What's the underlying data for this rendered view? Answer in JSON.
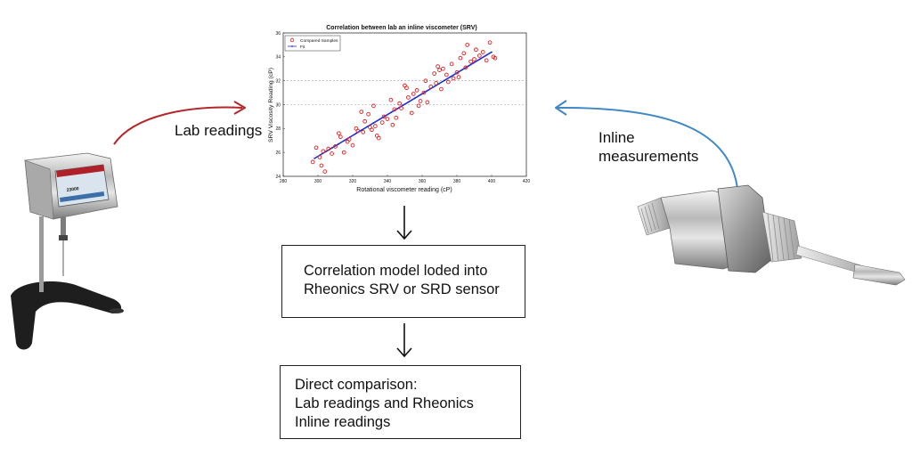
{
  "labels": {
    "lab_readings": "Lab readings",
    "inline_line1": "Inline",
    "inline_line2": "measurements"
  },
  "boxes": {
    "model_line1": "Correlation model loded into",
    "model_line2": "Rheonics SRV or SRD sensor",
    "compare_line1": "Direct comparison:",
    "compare_line2": "Lab readings and Rheonics",
    "compare_line3": "Inline readings"
  },
  "devices": {
    "viscometer_screen_value": "23000"
  },
  "colors": {
    "lab_arrow": "#b3262a",
    "inline_arrow": "#3f88c5",
    "samples": "#e02020",
    "fit": "#1f2fd1"
  },
  "chart_data": {
    "type": "scatter",
    "title": "Correlation between lab an inline viscometer (SRV)",
    "xlabel": "Rotational viscometer reading (cP)",
    "ylabel": "SRV Viscosity Reading (cP)",
    "xlim": [
      280,
      420
    ],
    "ylim": [
      24,
      36
    ],
    "xticks": [
      280,
      300,
      320,
      340,
      360,
      380,
      400,
      420
    ],
    "yticks": [
      24,
      26,
      28,
      30,
      32,
      34,
      36
    ],
    "grid_y": [
      30,
      32
    ],
    "legend": {
      "position": "top-left",
      "entries": [
        "Compared Samples",
        "Fit"
      ]
    },
    "series": [
      {
        "name": "Compared Samples",
        "marker": "circle",
        "points": [
          [
            297,
            25.2
          ],
          [
            299,
            26.4
          ],
          [
            301,
            25.6
          ],
          [
            302,
            24.9
          ],
          [
            303,
            26.1
          ],
          [
            304,
            24.4
          ],
          [
            306,
            26.3
          ],
          [
            308,
            25.9
          ],
          [
            310,
            26.5
          ],
          [
            312,
            27.6
          ],
          [
            313,
            27.3
          ],
          [
            315,
            26.0
          ],
          [
            317,
            26.9
          ],
          [
            318,
            27.1
          ],
          [
            320,
            26.6
          ],
          [
            322,
            28.0
          ],
          [
            323,
            27.8
          ],
          [
            325,
            29.4
          ],
          [
            326,
            27.7
          ],
          [
            327,
            28.6
          ],
          [
            329,
            29.2
          ],
          [
            330,
            28.1
          ],
          [
            331,
            27.9
          ],
          [
            332,
            29.9
          ],
          [
            333,
            28.2
          ],
          [
            334,
            27.4
          ],
          [
            335,
            27.2
          ],
          [
            337,
            28.5
          ],
          [
            338,
            29.0
          ],
          [
            340,
            28.8
          ],
          [
            342,
            30.4
          ],
          [
            343,
            28.3
          ],
          [
            344,
            29.6
          ],
          [
            345,
            28.9
          ],
          [
            347,
            30.1
          ],
          [
            348,
            29.7
          ],
          [
            350,
            31.6
          ],
          [
            351,
            31.4
          ],
          [
            352,
            30.6
          ],
          [
            354,
            29.3
          ],
          [
            355,
            30.9
          ],
          [
            357,
            31.2
          ],
          [
            358,
            29.9
          ],
          [
            359,
            30.3
          ],
          [
            361,
            31.0
          ],
          [
            362,
            32.0
          ],
          [
            363,
            30.2
          ],
          [
            365,
            31.5
          ],
          [
            367,
            32.6
          ],
          [
            368,
            31.8
          ],
          [
            369,
            33.2
          ],
          [
            370,
            32.9
          ],
          [
            371,
            31.3
          ],
          [
            372,
            33.0
          ],
          [
            374,
            32.5
          ],
          [
            375,
            31.9
          ],
          [
            377,
            33.4
          ],
          [
            378,
            32.2
          ],
          [
            380,
            32.7
          ],
          [
            381,
            32.3
          ],
          [
            382,
            33.9
          ],
          [
            384,
            34.3
          ],
          [
            385,
            33.1
          ],
          [
            386,
            35.0
          ],
          [
            388,
            33.6
          ],
          [
            390,
            33.8
          ],
          [
            391,
            34.6
          ],
          [
            393,
            34.1
          ],
          [
            395,
            34.4
          ],
          [
            397,
            33.7
          ],
          [
            399,
            35.2
          ],
          [
            401,
            34.0
          ],
          [
            402,
            33.9
          ]
        ]
      },
      {
        "name": "Fit",
        "marker": "line",
        "points": [
          [
            298,
            25.5
          ],
          [
            400,
            34.4
          ]
        ]
      }
    ]
  }
}
